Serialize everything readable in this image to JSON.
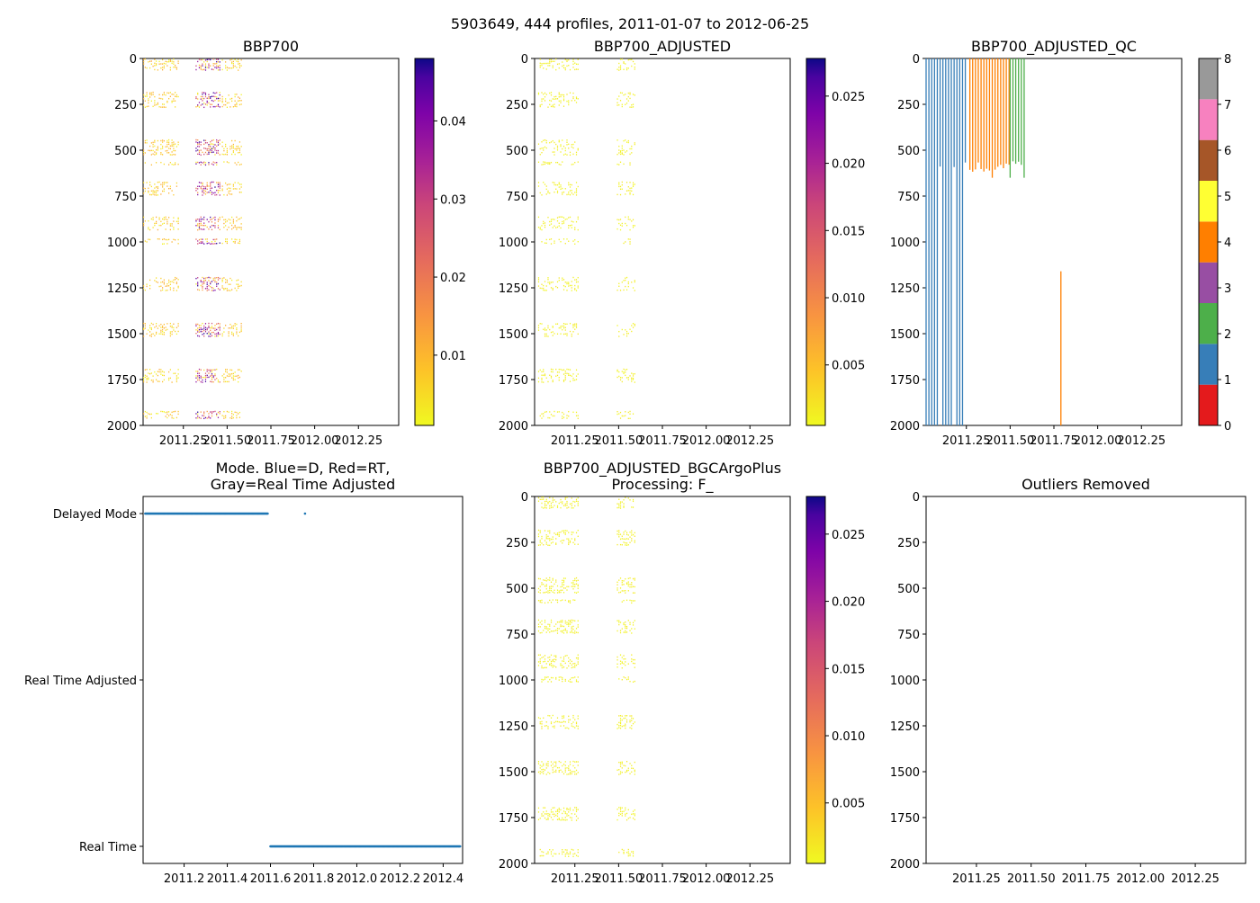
{
  "suptitle": "5903649, 444 profiles, 2011-01-07 to 2012-06-25",
  "chart_data": [
    {
      "id": "bbp700",
      "type": "heatmap",
      "title": "BBP700",
      "xlabel": "",
      "ylabel": "",
      "xticks": [
        "2011.25",
        "2011.50",
        "2011.75",
        "2012.00",
        "2012.25"
      ],
      "yticks": [
        "0",
        "250",
        "500",
        "750",
        "1000",
        "1250",
        "1500",
        "1750",
        "2000"
      ],
      "ylim": [
        2000,
        0
      ],
      "colorbar": {
        "cmap": "plasma_r",
        "ticks": [
          "0.01",
          "0.02",
          "0.03",
          "0.04"
        ],
        "range": [
          0.001,
          0.048
        ]
      },
      "data_extent": [
        "2011.01",
        "2011.59"
      ]
    },
    {
      "id": "bbp700_adjusted",
      "type": "heatmap",
      "title": "BBP700_ADJUSTED",
      "xticks": [
        "2011.25",
        "2011.50",
        "2011.75",
        "2012.00",
        "2012.25"
      ],
      "yticks": [
        "0",
        "250",
        "500",
        "750",
        "1000",
        "1250",
        "1500",
        "1750",
        "2000"
      ],
      "ylim": [
        2000,
        0
      ],
      "colorbar": {
        "cmap": "plasma_r",
        "ticks": [
          "0.005",
          "0.010",
          "0.015",
          "0.020",
          "0.025"
        ],
        "range": [
          0.0005,
          0.0278
        ]
      },
      "data_extent": [
        "2011.01",
        "2011.59"
      ]
    },
    {
      "id": "bbp700_adjusted_qc",
      "type": "heatmap",
      "title": "BBP700_ADJUSTED_QC",
      "xticks": [
        "2011.25",
        "2011.50",
        "2011.75",
        "2012.00",
        "2012.25"
      ],
      "yticks": [
        "0",
        "250",
        "500",
        "750",
        "1000",
        "1250",
        "1500",
        "1750",
        "2000"
      ],
      "ylim": [
        2000,
        0
      ],
      "colorbar": {
        "cmap": "Set1",
        "ticks": [
          "0",
          "1",
          "2",
          "3",
          "4",
          "5",
          "6",
          "7",
          "8"
        ],
        "colors": [
          "#e41a1c",
          "#377eb8",
          "#4daf4a",
          "#984ea3",
          "#ff7f00",
          "#ffff33",
          "#a65628",
          "#f781bf",
          "#999999"
        ]
      },
      "qc_groups": [
        {
          "flag": 1,
          "from": 2011.02,
          "to": 2011.26
        },
        {
          "flag": 4,
          "from": 2011.27,
          "to": 2011.5
        },
        {
          "flag": 2,
          "from": 2011.5,
          "to": 2011.59
        },
        {
          "flag": 4,
          "from": 2011.79,
          "to": 2011.79
        }
      ]
    },
    {
      "id": "mode",
      "type": "scatter",
      "title": "Mode. Blue=D, Red=RT,",
      "title2": "Gray=Real Time Adjusted",
      "xticks": [
        "2011.2",
        "2011.4",
        "2011.6",
        "2011.8",
        "2012.0",
        "2012.2",
        "2012.4"
      ],
      "yticklabels": [
        "Delayed Mode",
        "Real Time Adjusted",
        "Real Time"
      ],
      "series": [
        {
          "name": "Delayed Mode",
          "x_from": 2011.02,
          "x_to": 2011.59,
          "extra_x": [
            2011.76
          ]
        },
        {
          "name": "Real Time",
          "x_from": 2011.6,
          "x_to": 2012.48
        }
      ]
    },
    {
      "id": "bgc_plus",
      "type": "heatmap",
      "title": "BBP700_ADJUSTED_BGCArgoPlus",
      "title2": "Processing: F_",
      "xticks": [
        "2011.25",
        "2011.50",
        "2011.75",
        "2012.00",
        "2012.25"
      ],
      "yticks": [
        "0",
        "250",
        "500",
        "750",
        "1000",
        "1250",
        "1500",
        "1750",
        "2000"
      ],
      "ylim": [
        2000,
        0
      ],
      "colorbar": {
        "cmap": "plasma_r",
        "ticks": [
          "0.005",
          "0.010",
          "0.015",
          "0.020",
          "0.025"
        ],
        "range": [
          0.0005,
          0.0278
        ]
      },
      "data_extent": [
        "2011.01",
        "2011.59"
      ]
    },
    {
      "id": "outliers",
      "type": "scatter",
      "title": "Outliers Removed",
      "xticks": [
        "2011.25",
        "2011.50",
        "2011.75",
        "2012.00",
        "2012.25"
      ],
      "yticks": [
        "0",
        "250",
        "500",
        "750",
        "1000",
        "1250",
        "1500",
        "1750",
        "2000"
      ],
      "ylim": [
        2000,
        0
      ],
      "series": []
    }
  ]
}
